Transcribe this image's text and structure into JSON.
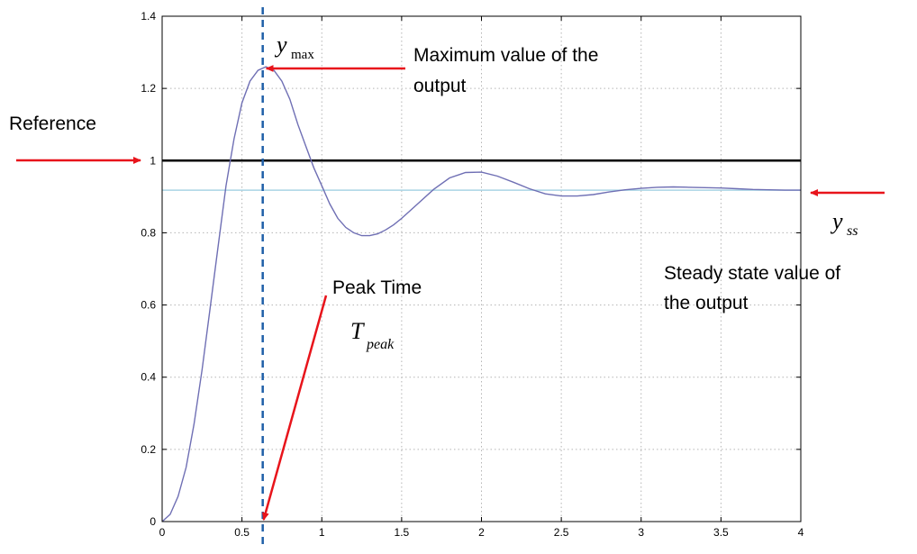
{
  "chart_data": {
    "type": "line",
    "title": "",
    "xlabel": "",
    "ylabel": "",
    "xlim": [
      0,
      4
    ],
    "ylim": [
      0,
      1.4
    ],
    "xticks": [
      "0",
      "0.5",
      "1",
      "1.5",
      "2",
      "2.5",
      "3",
      "3.5",
      "4"
    ],
    "yticks": [
      "0",
      "0.2",
      "0.4",
      "0.6",
      "0.8",
      "1",
      "1.2",
      "1.4"
    ],
    "grid": true,
    "series": [
      {
        "name": "",
        "color": "#6f6fb4",
        "x": [
          0,
          0.05,
          0.1,
          0.15,
          0.2,
          0.25,
          0.3,
          0.35,
          0.4,
          0.45,
          0.5,
          0.55,
          0.6,
          0.65,
          0.7,
          0.75,
          0.8,
          0.85,
          0.9,
          0.95,
          1.0,
          1.05,
          1.1,
          1.15,
          1.2,
          1.25,
          1.3,
          1.35,
          1.4,
          1.45,
          1.5,
          1.6,
          1.7,
          1.8,
          1.9,
          2.0,
          2.1,
          2.2,
          2.3,
          2.4,
          2.5,
          2.6,
          2.7,
          2.8,
          2.9,
          3.0,
          3.1,
          3.2,
          3.3,
          3.4,
          3.5,
          3.6,
          3.7,
          3.8,
          3.9,
          4.0
        ],
        "y": [
          0,
          0.02,
          0.07,
          0.15,
          0.27,
          0.42,
          0.59,
          0.76,
          0.93,
          1.06,
          1.16,
          1.22,
          1.25,
          1.26,
          1.25,
          1.22,
          1.17,
          1.1,
          1.04,
          0.98,
          0.93,
          0.88,
          0.84,
          0.815,
          0.8,
          0.792,
          0.792,
          0.797,
          0.808,
          0.822,
          0.84,
          0.88,
          0.92,
          0.952,
          0.967,
          0.968,
          0.957,
          0.94,
          0.922,
          0.908,
          0.902,
          0.902,
          0.906,
          0.913,
          0.919,
          0.923,
          0.926,
          0.927,
          0.926,
          0.925,
          0.924,
          0.922,
          0.92,
          0.919,
          0.918,
          0.918
        ]
      }
    ],
    "reference": {
      "value": 1,
      "color": "#000000"
    },
    "steady_state": {
      "value": 0.918,
      "color": "#a9d4e4"
    },
    "peak_time": {
      "value": 0.63,
      "color": "#1f5fa8"
    }
  },
  "annotations": {
    "ymax_symbol": "y",
    "ymax_subscript": "max",
    "max_label_line1": "Maximum value of the",
    "max_label_line2": "output",
    "reference_label": "Reference",
    "yss_symbol": "y",
    "yss_subscript": "ss",
    "steady_label_line1": "Steady state value of",
    "steady_label_line2": "the output",
    "peak_label": "Peak Time",
    "tpeak_symbol": "T",
    "tpeak_subscript": "peak",
    "arrow_color": "#e8141b"
  }
}
